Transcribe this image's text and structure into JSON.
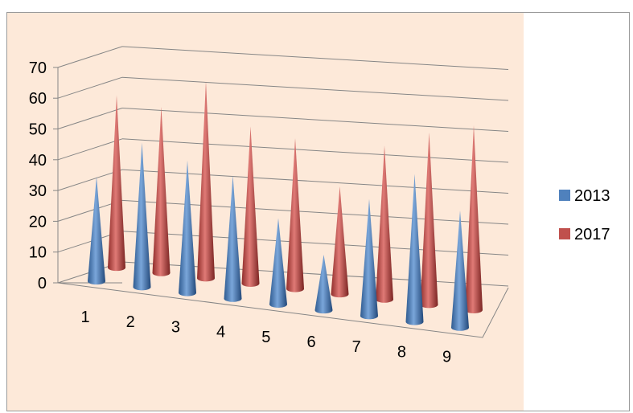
{
  "chart_data": {
    "type": "bar",
    "style": "3d-cone",
    "categories": [
      "1",
      "2",
      "3",
      "4",
      "5",
      "6",
      "7",
      "8",
      "9"
    ],
    "series": [
      {
        "name": "2013",
        "color": "#4f81bd",
        "values": [
          34,
          47,
          43,
          40,
          28,
          18,
          38,
          48,
          38
        ]
      },
      {
        "name": "2017",
        "color": "#c0504d",
        "values": [
          56,
          54,
          64,
          51,
          49,
          35,
          50,
          56,
          60
        ]
      }
    ],
    "y_ticks": [
      "0",
      "10",
      "20",
      "30",
      "40",
      "50",
      "60",
      "70"
    ],
    "ylim": [
      0,
      70
    ],
    "grid": true,
    "legend_position": "right",
    "plot_background": "#fde9d9"
  }
}
